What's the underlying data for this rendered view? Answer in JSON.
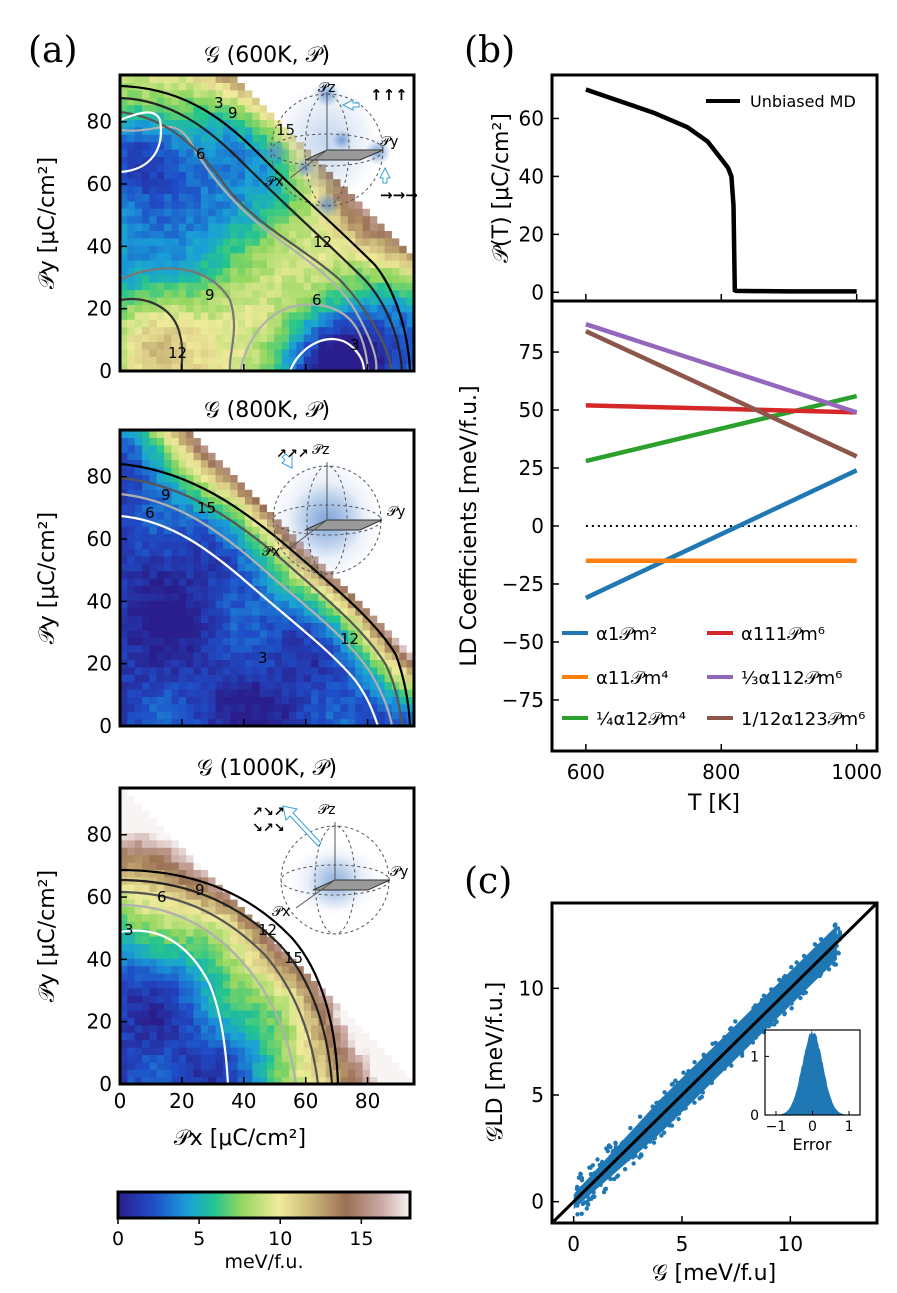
{
  "panel_labels": {
    "a": "(a)",
    "b": "(b)",
    "c": "(c)"
  },
  "chart_data": [
    {
      "id": "a1",
      "type": "heatmap",
      "title": "𝒢 (600K, 𝒫)",
      "xlabel": "",
      "ylabel": "𝒫y [μC/cm²]",
      "xlim": [
        0,
        95
      ],
      "ylim": [
        0,
        95
      ],
      "yticks": [
        "0",
        "20",
        "40",
        "60",
        "80"
      ],
      "contour_labels": [
        "3",
        "6",
        "9",
        "12",
        "15",
        "12",
        "9",
        "6",
        "3"
      ],
      "inset_labels": {
        "pz": "𝒫z",
        "py": "𝒫y",
        "px": "𝒫x"
      }
    },
    {
      "id": "a2",
      "type": "heatmap",
      "title": "𝒢 (800K, 𝒫)",
      "xlabel": "",
      "ylabel": "𝒫y [μC/cm²]",
      "xlim": [
        0,
        95
      ],
      "ylim": [
        0,
        95
      ],
      "yticks": [
        "0",
        "20",
        "40",
        "60",
        "80"
      ],
      "contour_labels": [
        "9",
        "6",
        "15",
        "3",
        "12"
      ],
      "inset_labels": {
        "pz": "𝒫z",
        "py": "𝒫y",
        "px": "𝒫x"
      }
    },
    {
      "id": "a3",
      "type": "heatmap",
      "title": "𝒢 (1000K, 𝒫)",
      "xlabel": "𝒫x [μC/cm²]",
      "ylabel": "𝒫y [μC/cm²]",
      "xlim": [
        0,
        95
      ],
      "ylim": [
        0,
        95
      ],
      "xticks": [
        "0",
        "20",
        "40",
        "60",
        "80"
      ],
      "yticks": [
        "0",
        "20",
        "40",
        "60",
        "80"
      ],
      "contour_labels": [
        "3",
        "6",
        "9",
        "12",
        "15"
      ],
      "inset_labels": {
        "pz": "𝒫z",
        "py": "𝒫y",
        "px": "𝒫x"
      }
    },
    {
      "id": "colorbar",
      "type": "heatmap",
      "range": [
        0,
        18
      ],
      "ticks": [
        "0",
        "5",
        "10",
        "15"
      ],
      "label": "meV/f.u."
    },
    {
      "id": "b_top",
      "type": "line",
      "ylabel": "𝒫(T) [μC/cm²]",
      "xlim": [
        550,
        1030
      ],
      "ylim": [
        -3,
        75
      ],
      "yticks": [
        "0",
        "20",
        "40",
        "60"
      ],
      "legend": "Unbiased MD",
      "series": [
        {
          "name": "Unbiased MD",
          "x": [
            600,
            650,
            700,
            750,
            780,
            800,
            810,
            815,
            818,
            820,
            822,
            850,
            900,
            1000
          ],
          "y": [
            70,
            66,
            62,
            57,
            52,
            46,
            43,
            40,
            30,
            0.7,
            0.5,
            0.4,
            0.3,
            0.3
          ]
        }
      ]
    },
    {
      "id": "b_bottom",
      "type": "line",
      "xlabel": "T [K]",
      "ylabel": "LD Coefficients [meV/f.u.]",
      "xlim": [
        550,
        1030
      ],
      "ylim": [
        -97,
        97
      ],
      "xticks": [
        "600",
        "800",
        "1000"
      ],
      "yticks": [
        "−75",
        "−50",
        "−25",
        "0",
        "25",
        "50",
        "75"
      ],
      "series": [
        {
          "name": "α1𝒫m²",
          "x": [
            600,
            1000
          ],
          "y": [
            -31,
            24
          ],
          "color": "#1f77b4"
        },
        {
          "name": "α11𝒫m⁴",
          "x": [
            600,
            1000
          ],
          "y": [
            -15,
            -15
          ],
          "color": "#ff7f0e"
        },
        {
          "name": "¼α12𝒫m⁴",
          "x": [
            600,
            1000
          ],
          "y": [
            28,
            56
          ],
          "color": "#2ca02c"
        },
        {
          "name": "α111𝒫m⁶",
          "x": [
            600,
            1000
          ],
          "y": [
            52,
            49
          ],
          "color": "#d62728"
        },
        {
          "name": "⅓α112𝒫m⁶",
          "x": [
            600,
            1000
          ],
          "y": [
            87,
            49
          ],
          "color": "#9467bd"
        },
        {
          "name": "1/12α123𝒫m⁶",
          "x": [
            600,
            1000
          ],
          "y": [
            84,
            30
          ],
          "color": "#8c564b"
        }
      ],
      "zero_line": {
        "x": [
          600,
          1000
        ],
        "y": [
          0,
          0
        ]
      }
    },
    {
      "id": "c",
      "type": "scatter",
      "xlabel": "𝒢 [meV/f.u]",
      "ylabel": "𝒢LD [meV/f.u.]",
      "xlim": [
        -1,
        14
      ],
      "ylim": [
        -1,
        14
      ],
      "xticks": [
        "0",
        "5",
        "10"
      ],
      "yticks": [
        "0",
        "5",
        "10"
      ],
      "color": "#1f77b4",
      "fit_line": {
        "x": [
          -1,
          14
        ],
        "y": [
          -1,
          14
        ]
      },
      "inset": {
        "xlabel": "Error",
        "xlim": [
          -1.3,
          1.3
        ],
        "ylim": [
          0,
          1.45
        ],
        "xticks": [
          "−1",
          "0",
          "1"
        ],
        "yticks": [
          "0",
          "1"
        ],
        "distribution": "gaussian",
        "mean": 0.0,
        "std": 0.28
      }
    }
  ]
}
